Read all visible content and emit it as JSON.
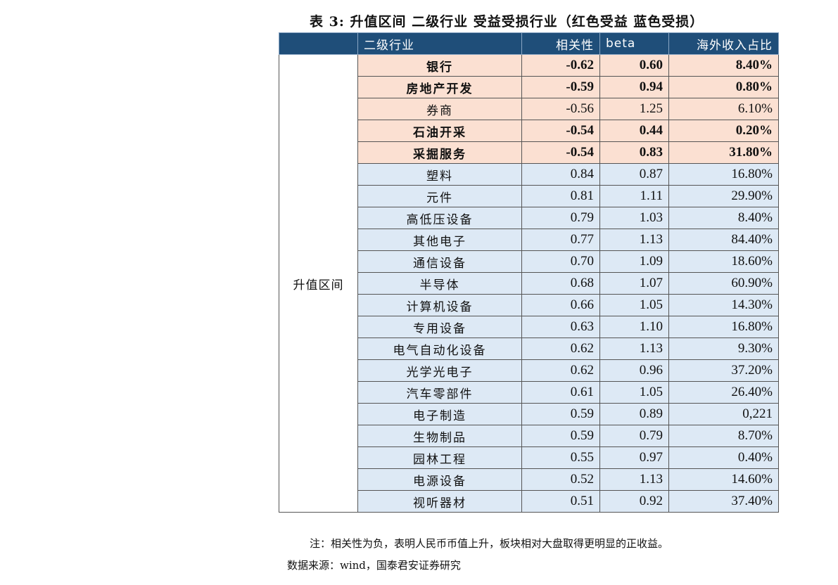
{
  "title": "表 3:  升值区间  二级行业  受益受损行业（红色受益  蓝色受损）",
  "headers": [
    "",
    "二级行业",
    "相关性",
    "beta",
    "海外收入占比"
  ],
  "group_label": "升值区间",
  "colors": {
    "header": "#1f4e79",
    "benefit_row": "#fbe0d2",
    "loss_row": "#dde9f5"
  },
  "rows": [
    {
      "name": "银行",
      "corr": "-0.62",
      "beta": "0.60",
      "overseas": "8.40%",
      "type": "red",
      "bold": true
    },
    {
      "name": "房地产开发",
      "corr": "-0.59",
      "beta": "0.94",
      "overseas": "0.80%",
      "type": "red",
      "bold": true
    },
    {
      "name": "券商",
      "corr": "-0.56",
      "beta": "1.25",
      "overseas": "6.10%",
      "type": "red",
      "bold": false
    },
    {
      "name": "石油开采",
      "corr": "-0.54",
      "beta": "0.44",
      "overseas": "0.20%",
      "type": "red",
      "bold": true
    },
    {
      "name": "采掘服务",
      "corr": "-0.54",
      "beta": "0.83",
      "overseas": "31.80%",
      "type": "red",
      "bold": true
    },
    {
      "name": "塑料",
      "corr": "0.84",
      "beta": "0.87",
      "overseas": "16.80%",
      "type": "blue"
    },
    {
      "name": "元件",
      "corr": "0.81",
      "beta": "1.11",
      "overseas": "29.90%",
      "type": "blue"
    },
    {
      "name": "高低压设备",
      "corr": "0.79",
      "beta": "1.03",
      "overseas": "8.40%",
      "type": "blue"
    },
    {
      "name": "其他电子",
      "corr": "0.77",
      "beta": "1.13",
      "overseas": "84.40%",
      "type": "blue"
    },
    {
      "name": "通信设备",
      "corr": "0.70",
      "beta": "1.09",
      "overseas": "18.60%",
      "type": "blue"
    },
    {
      "name": "半导体",
      "corr": "0.68",
      "beta": "1.07",
      "overseas": "60.90%",
      "type": "blue"
    },
    {
      "name": "计算机设备",
      "corr": "0.66",
      "beta": "1.05",
      "overseas": "14.30%",
      "type": "blue"
    },
    {
      "name": "专用设备",
      "corr": "0.63",
      "beta": "1.10",
      "overseas": "16.80%",
      "type": "blue"
    },
    {
      "name": "电气自动化设备",
      "corr": "0.62",
      "beta": "1.13",
      "overseas": "9.30%",
      "type": "blue"
    },
    {
      "name": "光学光电子",
      "corr": "0.62",
      "beta": "0.96",
      "overseas": "37.20%",
      "type": "blue"
    },
    {
      "name": "汽车零部件",
      "corr": "0.61",
      "beta": "1.05",
      "overseas": "26.40%",
      "type": "blue"
    },
    {
      "name": "电子制造",
      "corr": "0.59",
      "beta": "0.89",
      "overseas": "0,221",
      "type": "blue"
    },
    {
      "name": "生物制品",
      "corr": "0.59",
      "beta": "0.79",
      "overseas": "8.70%",
      "type": "blue"
    },
    {
      "name": "园林工程",
      "corr": "0.55",
      "beta": "0.97",
      "overseas": "0.40%",
      "type": "blue"
    },
    {
      "name": "电源设备",
      "corr": "0.52",
      "beta": "1.13",
      "overseas": "14.60%",
      "type": "blue"
    },
    {
      "name": "视听器材",
      "corr": "0.51",
      "beta": "0.92",
      "overseas": "37.40%",
      "type": "blue"
    }
  ],
  "note": "注：相关性为负，表明人民币币值上升，板块相对大盘取得更明显的正收益。",
  "source": "数据来源：wind，国泰君安证券研究"
}
